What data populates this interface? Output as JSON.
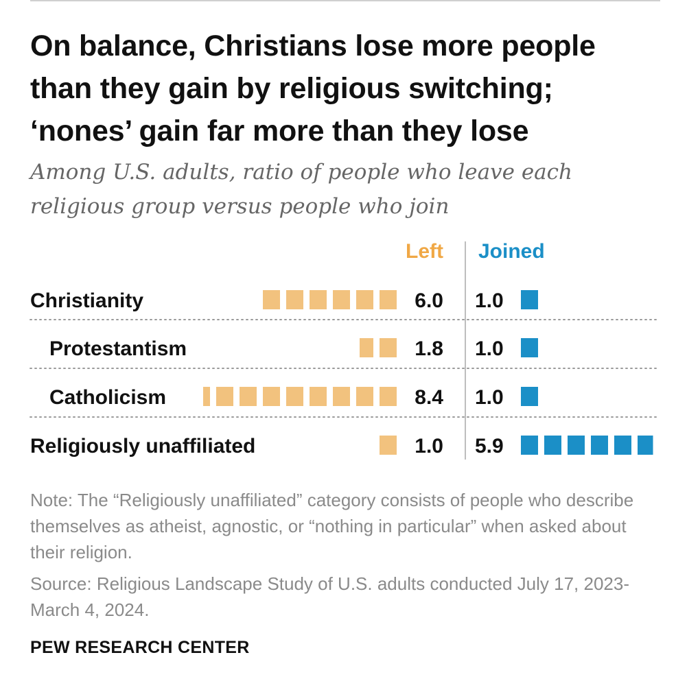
{
  "header": {
    "title": "On balance, Christians lose more people than they gain by religious switching; ‘nones’ gain far more than they lose",
    "subtitle": "Among U.S. adults, ratio of people who leave each religious group versus people who join"
  },
  "chart_data": {
    "type": "bar",
    "categories": [
      "Christianity",
      "Protestantism",
      "Catholicism",
      "Religiously unaffiliated"
    ],
    "category_indent": [
      false,
      true,
      true,
      false
    ],
    "series": [
      {
        "name": "Left",
        "values": [
          6.0,
          1.8,
          8.4,
          1.0
        ],
        "labels": [
          "6.0",
          "1.8",
          "8.4",
          "1.0"
        ],
        "color": "#f2c27e"
      },
      {
        "name": "Joined",
        "values": [
          1.0,
          1.0,
          1.0,
          5.9
        ],
        "labels": [
          "1.0",
          "1.0",
          "1.0",
          "5.9"
        ],
        "color": "#1b8fc7"
      }
    ],
    "unit": "ratio",
    "encoding": "one square per unit of ratio",
    "grid": false,
    "row_dividers": "dotted"
  },
  "footer": {
    "note": "Note: The “Religiously unaffiliated” category consists of people who describe themselves as atheist, agnostic, or “nothing in particular” when asked about their religion.",
    "source": "Source: Religious Landscape Study of U.S. adults conducted July 17, 2023-March 4, 2024.",
    "brand": "PEW RESEARCH CENTER"
  },
  "colors": {
    "left": "#f2c27e",
    "joined": "#1b8fc7",
    "left_label": "#f0a846",
    "joined_label": "#1b8fc7"
  }
}
